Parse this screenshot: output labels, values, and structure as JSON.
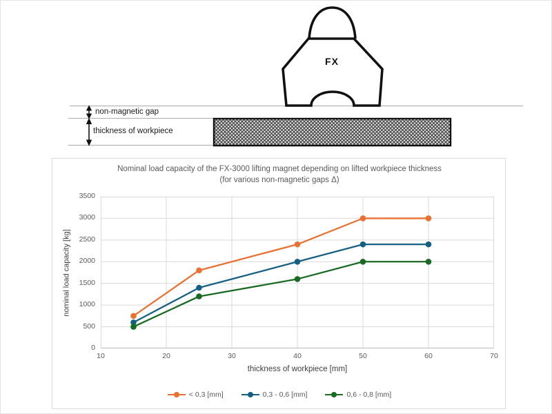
{
  "diagram": {
    "magnet_label": "FX",
    "gap_label": "non-magnetic gap",
    "thickness_label": "thickness of workpiece"
  },
  "chart_data": {
    "type": "line",
    "title": "Nominal load capacity of the FX-3000 lifting magnet depending on lifted workpiece thickness (for various non-magnetic gaps Δ)",
    "title_lines": [
      "Nominal load capacity of the FX-3000 lifting magnet depending on lifted workpiece thickness",
      "(for various non-magnetic gaps Δ)"
    ],
    "xlabel": "thickness of workpiece [mm]",
    "ylabel": "nominal load capacity [kg]",
    "x": [
      15,
      25,
      40,
      50,
      60
    ],
    "series": [
      {
        "name": "< 0,3 [mm]",
        "color": "#E97132",
        "values": [
          750,
          1800,
          2400,
          3000,
          3000
        ]
      },
      {
        "name": "0,3 - 0,6 [mm]",
        "color": "#156082",
        "values": [
          600,
          1400,
          2000,
          2400,
          2400
        ]
      },
      {
        "name": "0,6 - 0,8 [mm]",
        "color": "#196B24",
        "values": [
          500,
          1200,
          1600,
          2000,
          2000
        ]
      }
    ],
    "xlim": [
      10,
      70
    ],
    "xticks": [
      10,
      20,
      30,
      40,
      50,
      60,
      70
    ],
    "ylim": [
      0,
      3500
    ],
    "yticks": [
      0,
      500,
      1000,
      1500,
      2000,
      2500,
      3000,
      3500
    ],
    "grid": true,
    "legend_position": "bottom",
    "colors": {
      "gridline": "#d9d9d9",
      "axis_line": "#bfbfbf",
      "text": "#595959"
    }
  }
}
